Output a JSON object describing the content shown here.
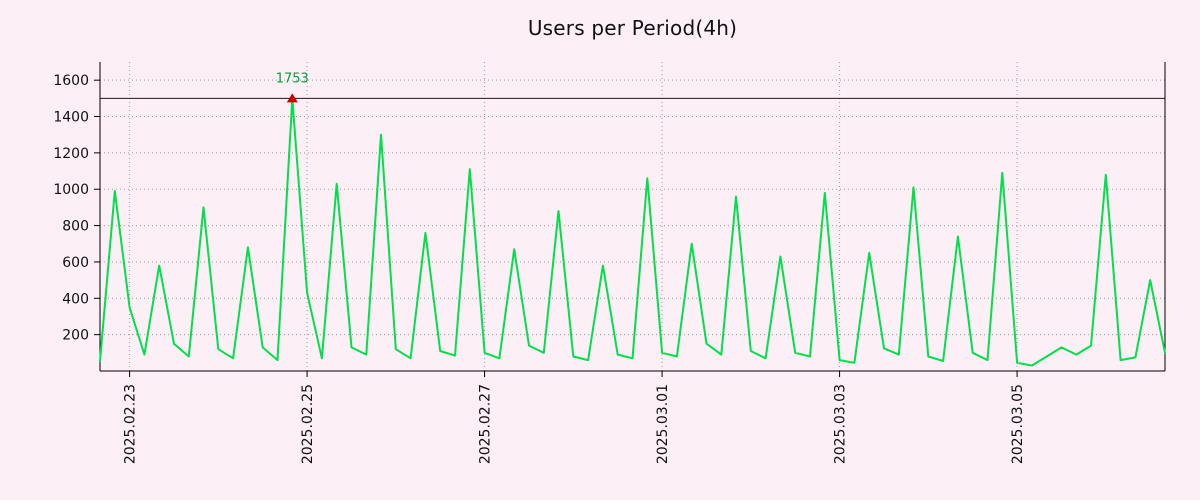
{
  "title": "Users per Period(4h)",
  "chart_data": {
    "type": "line",
    "title": "Users per Period(4h)",
    "series_name": "Users",
    "period_hours": 4,
    "grid": true,
    "legend": null,
    "ylim": [
      0,
      1700
    ],
    "y_ticks": [
      200,
      400,
      600,
      800,
      1000,
      1200,
      1400,
      1600
    ],
    "x_ticks": [
      {
        "label": "2025.02.23",
        "index": 2
      },
      {
        "label": "2025.02.25",
        "index": 14
      },
      {
        "label": "2025.02.27",
        "index": 26
      },
      {
        "label": "2025.03.01",
        "index": 38
      },
      {
        "label": "2025.03.03",
        "index": 50
      },
      {
        "label": "2025.03.05",
        "index": 62
      }
    ],
    "values": [
      55,
      990,
      350,
      90,
      580,
      150,
      80,
      900,
      120,
      70,
      680,
      130,
      60,
      1753,
      430,
      70,
      1030,
      130,
      90,
      1300,
      120,
      70,
      760,
      110,
      85,
      1110,
      100,
      70,
      670,
      140,
      100,
      880,
      80,
      60,
      580,
      90,
      70,
      1060,
      100,
      80,
      700,
      150,
      90,
      960,
      110,
      70,
      630,
      100,
      80,
      980,
      60,
      45,
      650,
      125,
      90,
      1010,
      80,
      55,
      740,
      100,
      60,
      1090,
      45,
      30,
      80,
      130,
      90,
      140,
      1080,
      60,
      75,
      500,
      100
    ],
    "threshold": 1500,
    "max_annotation": {
      "label": "1753",
      "value": 1753,
      "index": 13
    },
    "colors": {
      "line": "#00E04A",
      "background": "#FCEFF6",
      "grid": "#9A9A9A",
      "axis": "#000000",
      "threshold": "#1A1A1A",
      "annotation": "#00A040",
      "marker": "#CC0000",
      "text": "#111111"
    }
  }
}
